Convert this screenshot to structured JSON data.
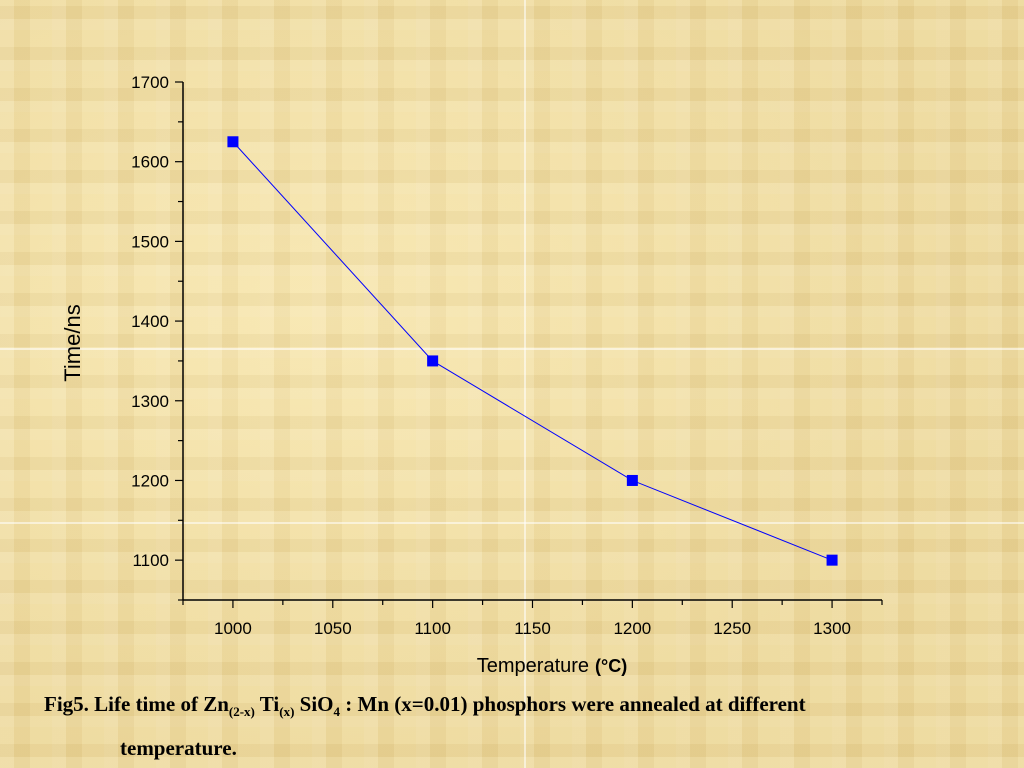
{
  "chart_data": {
    "type": "line",
    "title": "",
    "xlabel": "Temperature",
    "xlabel_unit": "(°C)",
    "ylabel": "Time/ns",
    "xlim": [
      975,
      1325
    ],
    "ylim": [
      1050,
      1700
    ],
    "x_ticks": [
      1000,
      1050,
      1100,
      1150,
      1200,
      1250,
      1300
    ],
    "y_ticks": [
      1100,
      1200,
      1300,
      1400,
      1500,
      1600,
      1700
    ],
    "grid": false,
    "series": [
      {
        "x": [
          1000,
          1100,
          1200,
          1300
        ],
        "y": [
          1625,
          1350,
          1200,
          1100
        ],
        "color": "#0000ff",
        "marker": "square"
      }
    ]
  },
  "caption": {
    "prefix": "Fig5. Life time of Zn",
    "sub1": "(2-x)",
    "mid1": " Ti",
    "sub2": "(x)",
    "mid2": " SiO",
    "sub3": "4",
    "suffix": " : Mn (x=0.01) phosphors were annealed at different",
    "line2": "temperature."
  }
}
